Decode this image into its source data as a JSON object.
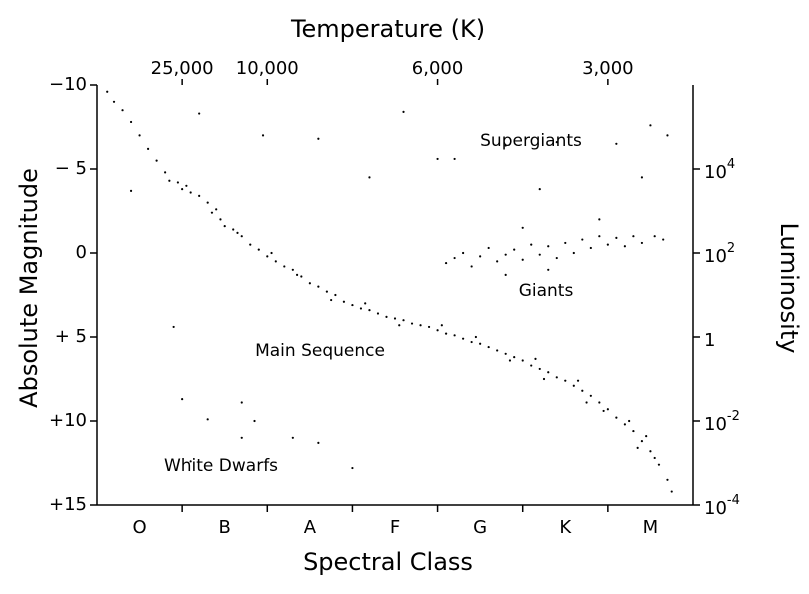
{
  "chart_data": {
    "type": "scatter",
    "title": "Temperature (K)",
    "x_label": "Spectral Class",
    "y_label": "Absolute Magnitude",
    "y2_label": "Luminosity",
    "categories": [
      "O",
      "B",
      "A",
      "F",
      "G",
      "K",
      "M"
    ],
    "xlim": [
      0,
      7
    ],
    "x2ticks": [
      {
        "value": 25000,
        "label": "25,000",
        "x": 1
      },
      {
        "value": 10000,
        "label": "10,000",
        "x": 2
      },
      {
        "value": 6000,
        "label": "6,000",
        "x": 4
      },
      {
        "value": 3000,
        "label": "3,000",
        "x": 6
      }
    ],
    "ylim": [
      15,
      -10
    ],
    "yticks": [
      {
        "value": -10,
        "label": "−10"
      },
      {
        "value": -5,
        "label": "− 5"
      },
      0,
      {
        "value": 5,
        "label": "+ 5"
      },
      {
        "value": 10,
        "label": "+10"
      },
      {
        "value": 15,
        "label": "+15"
      }
    ],
    "y2lim": [
      0.0001,
      1000000
    ],
    "y2_log": true,
    "y2ticks": [
      {
        "value": 10000,
        "label": "10",
        "exponent": "4"
      },
      {
        "value": 100,
        "label": "10",
        "exponent": "2"
      },
      1,
      {
        "value": 0.01,
        "label": "10",
        "exponent": "-2"
      },
      {
        "value": 0.0001,
        "label": "10",
        "exponent": "-4"
      }
    ],
    "annotations": [
      "Supergiants",
      "Giants",
      "Main Sequence",
      "White Dwarfs"
    ],
    "color": "#000000",
    "x": [
      0.12,
      0.2,
      0.3,
      0.4,
      0.5,
      0.6,
      0.7,
      0.8,
      0.85,
      0.95,
      1.05,
      1.1,
      1.2,
      1.3,
      1.35,
      1.45,
      1.5,
      1.6,
      1.7,
      1.8,
      1.9,
      2.0,
      2.1,
      2.2,
      2.3,
      2.4,
      2.5,
      2.6,
      2.7,
      2.8,
      2.9,
      3.0,
      3.1,
      3.2,
      3.3,
      3.4,
      3.5,
      3.6,
      3.7,
      3.8,
      3.9,
      4.0,
      4.1,
      4.2,
      4.3,
      4.4,
      4.5,
      4.6,
      4.7,
      4.8,
      4.9,
      5.0,
      5.1,
      5.2,
      5.3,
      5.4,
      5.5,
      5.6,
      5.7,
      5.8,
      5.9,
      6.0,
      6.1,
      6.2,
      6.3,
      6.4,
      6.5,
      6.6,
      6.7,
      6.75,
      1.0,
      1.4,
      1.65,
      2.05,
      2.35,
      2.75,
      3.15,
      3.55,
      4.05,
      4.45,
      4.85,
      5.25,
      5.65,
      5.95,
      6.25,
      6.45,
      6.55,
      6.35,
      5.75,
      5.15,
      4.1,
      4.2,
      4.3,
      4.4,
      4.5,
      4.6,
      4.7,
      4.8,
      4.9,
      5.0,
      5.1,
      5.2,
      5.3,
      5.4,
      5.5,
      5.6,
      5.7,
      5.8,
      5.9,
      6.0,
      6.1,
      6.2,
      6.3,
      6.4,
      6.55,
      6.65,
      4.8,
      5.3,
      5.0,
      5.9,
      1.2,
      1.95,
      2.6,
      3.6,
      4.0,
      4.2,
      4.8,
      5.4,
      6.1,
      6.4,
      6.5,
      6.7,
      5.2,
      3.2,
      0.4,
      0.9,
      1.0,
      1.3,
      1.7,
      1.7,
      1.85,
      2.3,
      2.6,
      3.0,
      1.1
    ],
    "values": [
      -9.6,
      -9.0,
      -8.5,
      -7.8,
      -7,
      -6.2,
      -5.5,
      -4.8,
      -4.3,
      -4.2,
      -4.0,
      -3.6,
      -3.4,
      -3.0,
      -2.4,
      -2.0,
      -1.6,
      -1.4,
      -1.0,
      -0.5,
      -0.2,
      0.2,
      0.5,
      0.8,
      1.0,
      1.4,
      1.8,
      2.0,
      2.3,
      2.5,
      2.9,
      3.1,
      3.3,
      3.4,
      3.6,
      3.8,
      3.9,
      4.0,
      4.2,
      4.3,
      4.4,
      4.6,
      4.8,
      4.9,
      5.1,
      5.3,
      5.4,
      5.6,
      5.8,
      6.0,
      6.2,
      6.4,
      6.7,
      6.9,
      7.1,
      7.4,
      7.6,
      7.9,
      8.2,
      8.5,
      8.9,
      9.3,
      9.8,
      10.2,
      10.6,
      11.2,
      11.8,
      12.6,
      13.5,
      14.2,
      -3.8,
      -2.6,
      -1.2,
      0.0,
      1.3,
      2.8,
      3.0,
      4.3,
      4.3,
      5.0,
      6.4,
      7.5,
      7.6,
      9.4,
      10.0,
      10.9,
      12.2,
      11.6,
      8.9,
      6.3,
      0.6,
      0.3,
      0.0,
      0.8,
      0.2,
      -0.3,
      0.5,
      0.1,
      -0.2,
      0.4,
      -0.5,
      0.1,
      -0.4,
      0.3,
      -0.6,
      0.0,
      -0.8,
      -0.3,
      -1.0,
      -0.5,
      -0.9,
      -0.4,
      -1.0,
      -0.6,
      -1.0,
      -0.8,
      1.3,
      1.0,
      -1.5,
      -2.0,
      -8.3,
      -7.0,
      -6.8,
      -8.4,
      -5.6,
      -5.6,
      -6.4,
      -6.6,
      -6.5,
      -4.5,
      -7.6,
      -7.0,
      -3.8,
      -4.5,
      -3.7,
      4.4,
      8.7,
      9.9,
      8.9,
      11.0,
      10.0,
      11.0,
      11.3,
      12.8,
      12.4
    ]
  }
}
